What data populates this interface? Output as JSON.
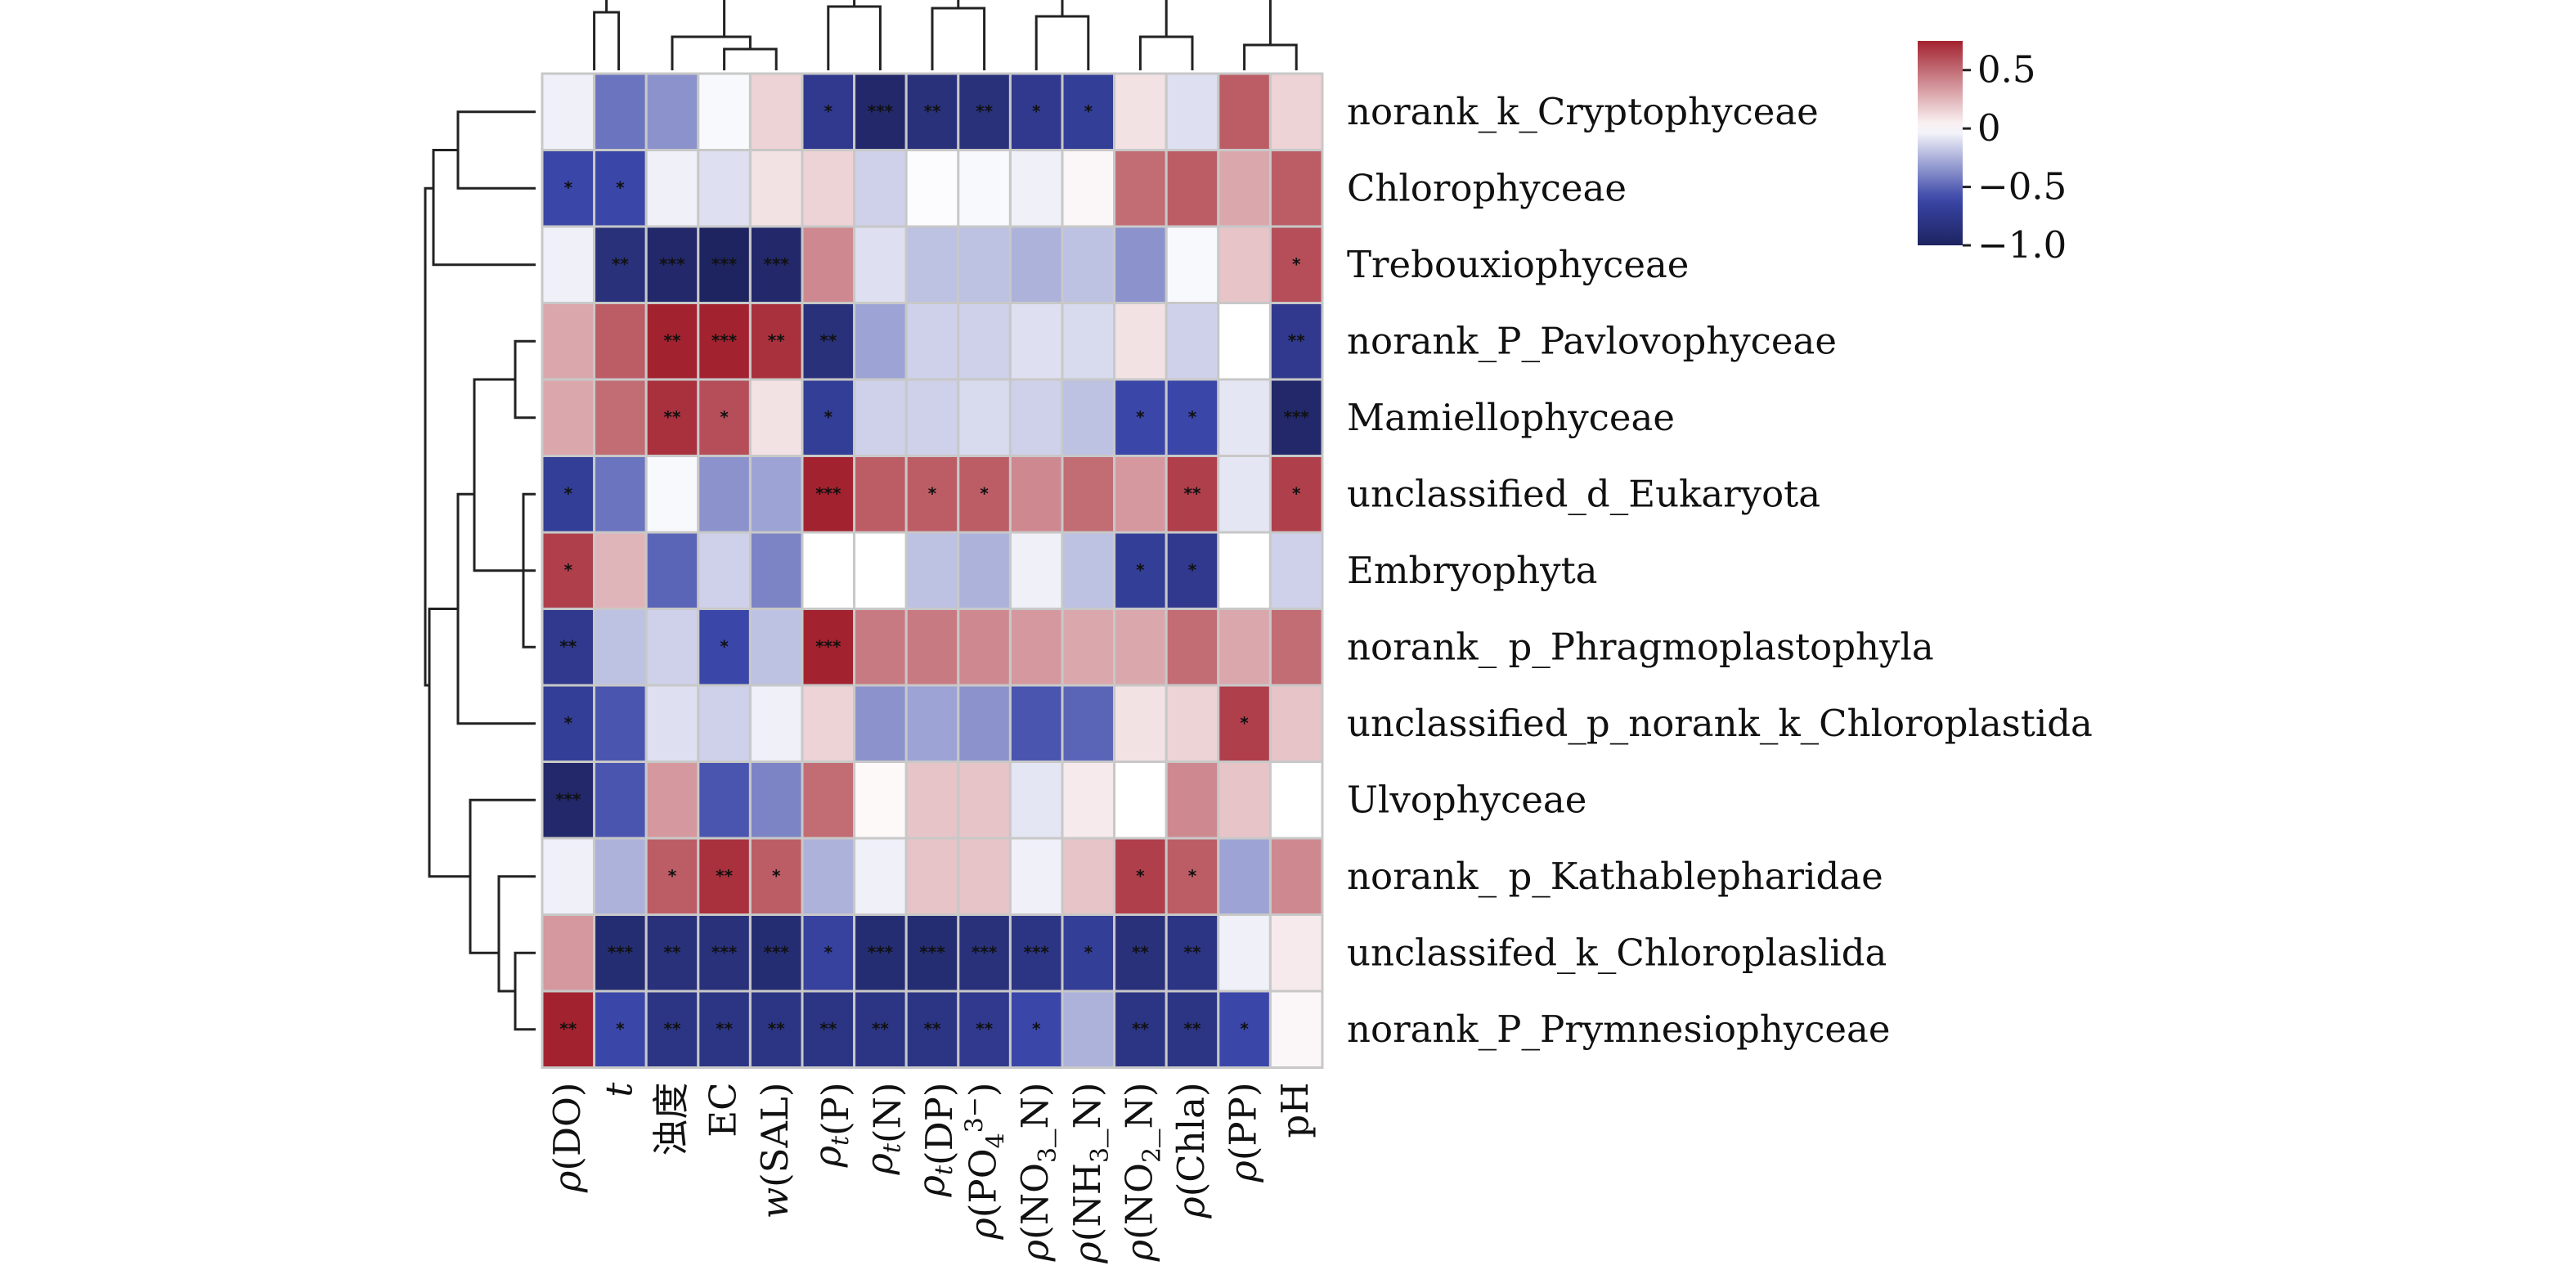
{
  "chart_data": {
    "type": "heatmap",
    "rows": [
      "norank_k_Cryptophyceae",
      "Chlorophyceae",
      "Trebouxiophyceae",
      "norank_P_Pavlovophyceae",
      "Mamiellophyceae",
      "unclassified_d_Eukaryota",
      "Embryophyta",
      "norank_ p_Phragmoplastophyla",
      "unclassified_p_norank_k_Chloroplastida",
      "Ulvophyceae",
      "norank_ p_Kathablepharidae",
      "unclassifed_k_Chloroplaslida",
      "norank_P_Prymnesiophyceae"
    ],
    "columns": [
      {
        "base": "ρ",
        "sub": "",
        "sup": "",
        "rest": "(DO)"
      },
      {
        "base": "t",
        "sub": "",
        "sup": "",
        "rest": ""
      },
      {
        "base": "浊度",
        "sub": "",
        "sup": "",
        "rest": ""
      },
      {
        "base": "EC",
        "sub": "",
        "sup": "",
        "rest": ""
      },
      {
        "base": "w",
        "sub": "",
        "sup": "",
        "rest": "(SAL)"
      },
      {
        "base": "ρ",
        "sub": "t",
        "sup": "",
        "rest": "(P)"
      },
      {
        "base": "ρ",
        "sub": "t",
        "sup": "",
        "rest": "(N)"
      },
      {
        "base": "ρ",
        "sub": "t",
        "sup": "",
        "rest": "(DP)"
      },
      {
        "base": "ρ",
        "sub": "",
        "sup": "3−",
        "rest": "(PO",
        "sub2": "4",
        "tail": ")"
      },
      {
        "base": "ρ",
        "sub": "",
        "sup": "",
        "rest": "(NO",
        "sub2": "3",
        "tail": "_N)"
      },
      {
        "base": "ρ",
        "sub": "",
        "sup": "",
        "rest": "(NH",
        "sub2": "3",
        "tail": "_N)"
      },
      {
        "base": "ρ",
        "sub": "",
        "sup": "",
        "rest": "(NO",
        "sub2": "2",
        "tail": "_N)"
      },
      {
        "base": "ρ",
        "sub": "",
        "sup": "",
        "rest": "(Chla)"
      },
      {
        "base": "ρ",
        "sub": "",
        "sup": "",
        "rest": "(PP)"
      },
      {
        "base": "pH",
        "sub": "",
        "sup": "",
        "rest": ""
      }
    ],
    "values": [
      [
        -0.05,
        -0.45,
        -0.35,
        -0.02,
        0.15,
        -0.75,
        -0.95,
        -0.85,
        -0.85,
        -0.75,
        -0.7,
        0.1,
        -0.1,
        0.55,
        0.15
      ],
      [
        -0.6,
        -0.6,
        -0.05,
        -0.1,
        0.1,
        0.15,
        -0.15,
        -0.01,
        -0.02,
        -0.05,
        0.03,
        0.5,
        0.55,
        0.3,
        0.55
      ],
      [
        -0.05,
        -0.85,
        -0.95,
        -1.0,
        -0.95,
        0.4,
        -0.1,
        -0.2,
        -0.2,
        -0.25,
        -0.2,
        -0.35,
        -0.02,
        0.2,
        0.6
      ],
      [
        0.3,
        0.55,
        0.75,
        0.85,
        0.7,
        -0.85,
        -0.3,
        -0.15,
        -0.15,
        -0.1,
        -0.12,
        0.1,
        -0.15,
        0.0,
        -0.75
      ],
      [
        0.3,
        0.5,
        0.7,
        0.6,
        0.1,
        -0.7,
        -0.15,
        -0.15,
        -0.12,
        -0.15,
        -0.2,
        -0.6,
        -0.6,
        -0.08,
        -0.95
      ],
      [
        -0.7,
        -0.45,
        -0.02,
        -0.35,
        -0.3,
        0.85,
        0.55,
        0.55,
        0.55,
        0.4,
        0.5,
        0.35,
        0.65,
        -0.08,
        0.65
      ],
      [
        0.65,
        0.25,
        -0.5,
        -0.15,
        -0.4,
        0.0,
        0.0,
        -0.2,
        -0.25,
        -0.05,
        -0.2,
        -0.7,
        -0.75,
        0.0,
        -0.15
      ],
      [
        -0.75,
        -0.2,
        -0.15,
        -0.6,
        -0.2,
        0.8,
        0.45,
        0.45,
        0.4,
        0.35,
        0.3,
        0.3,
        0.5,
        0.3,
        0.5
      ],
      [
        -0.7,
        -0.55,
        -0.1,
        -0.15,
        -0.05,
        0.15,
        -0.35,
        -0.3,
        -0.35,
        -0.55,
        -0.5,
        0.1,
        0.15,
        0.65,
        0.2
      ],
      [
        -0.95,
        -0.55,
        0.35,
        -0.55,
        -0.4,
        0.5,
        0.02,
        0.2,
        0.2,
        -0.08,
        0.07,
        0.0,
        0.4,
        0.2,
        0.0
      ],
      [
        -0.05,
        -0.25,
        0.55,
        0.7,
        0.55,
        -0.25,
        -0.05,
        0.2,
        0.2,
        -0.05,
        0.2,
        0.65,
        0.55,
        -0.3,
        0.4
      ],
      [
        0.35,
        -0.9,
        -0.85,
        -0.85,
        -0.9,
        -0.65,
        -0.9,
        -0.9,
        -0.85,
        -0.8,
        -0.7,
        -0.85,
        -0.8,
        -0.05,
        0.07
      ],
      [
        0.75,
        -0.6,
        -0.8,
        -0.8,
        -0.8,
        -0.8,
        -0.8,
        -0.8,
        -0.75,
        -0.6,
        -0.25,
        -0.8,
        -0.8,
        -0.6,
        0.03
      ]
    ],
    "significance": [
      [
        "",
        "",
        "",
        "",
        "",
        "*",
        "***",
        "**",
        "**",
        "*",
        "*",
        "",
        "",
        "",
        ""
      ],
      [
        "*",
        "*",
        "",
        "",
        "",
        "",
        "",
        "",
        "",
        "",
        "",
        "",
        "",
        "",
        ""
      ],
      [
        "",
        "**",
        "***",
        "***",
        "***",
        "",
        "",
        "",
        "",
        "",
        "",
        "",
        "",
        "",
        "*"
      ],
      [
        "",
        "",
        "**",
        "***",
        "**",
        "**",
        "",
        "",
        "",
        "",
        "",
        "",
        "",
        "",
        "**"
      ],
      [
        "",
        "",
        "**",
        "*",
        "",
        "*",
        "",
        "",
        "",
        "",
        "",
        "*",
        "*",
        "",
        "***"
      ],
      [
        "*",
        "",
        "",
        "",
        "",
        "***",
        "",
        "*",
        "*",
        "",
        "",
        "",
        "**",
        "",
        "*"
      ],
      [
        "*",
        "",
        "",
        "",
        "",
        "",
        "",
        "",
        "",
        "",
        "",
        "*",
        "*",
        "",
        ""
      ],
      [
        "**",
        "",
        "",
        "*",
        "",
        "***",
        "",
        "",
        "",
        "",
        "",
        "",
        "",
        "",
        ""
      ],
      [
        "*",
        "",
        "",
        "",
        "",
        "",
        "",
        "",
        "",
        "",
        "",
        "",
        "",
        "*",
        ""
      ],
      [
        "***",
        "",
        "",
        "",
        "",
        "",
        "",
        "",
        "",
        "",
        "",
        "",
        "",
        "",
        ""
      ],
      [
        "",
        "",
        "*",
        "**",
        "*",
        "",
        "",
        "",
        "",
        "",
        "",
        "*",
        "*",
        "",
        ""
      ],
      [
        "",
        "***",
        "**",
        "***",
        "***",
        "*",
        "***",
        "***",
        "***",
        "***",
        "*",
        "**",
        "**",
        "",
        ""
      ],
      [
        "**",
        "*",
        "**",
        "**",
        "**",
        "**",
        "**",
        "**",
        "**",
        "*",
        "",
        "**",
        "**",
        "*",
        ""
      ]
    ],
    "color_scale": {
      "min": -1.0,
      "max": 0.75,
      "low_color": "#1e2460",
      "mid_low_color": "#3a46a8",
      "mid_color": "#ffffff",
      "high_color": "#a3222f"
    },
    "legend": {
      "placement": "top-right",
      "ticks": [
        {
          "label": "0.5",
          "value": 0.5
        },
        {
          "label": "0",
          "value": 0.0
        },
        {
          "label": "−0.5",
          "value": -0.5
        },
        {
          "label": "−1.0",
          "value": -1.0
        }
      ]
    },
    "row_dendrogram": true,
    "column_dendrogram": true
  }
}
